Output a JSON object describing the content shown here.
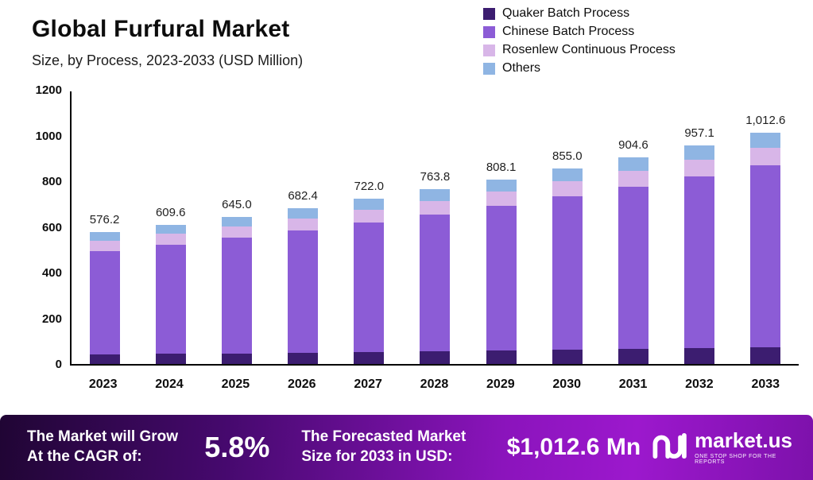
{
  "chart_data": {
    "type": "bar",
    "stacked": true,
    "title": "Global Furfural Market",
    "subtitle": "Size, by Process, 2023-2033 (USD Million)",
    "categories": [
      "2023",
      "2024",
      "2025",
      "2026",
      "2027",
      "2028",
      "2029",
      "2030",
      "2031",
      "2032",
      "2033"
    ],
    "series": [
      {
        "name": "Quaker Batch Process",
        "color": "#3c1d70",
        "values": [
          41.5,
          43.9,
          46.4,
          49.1,
          52.0,
          55.0,
          58.2,
          61.6,
          65.1,
          68.9,
          72.9
        ]
      },
      {
        "name": "Chinese Batch Process",
        "color": "#8c5cd6",
        "values": [
          452.9,
          479.2,
          507.0,
          536.4,
          567.5,
          600.4,
          635.2,
          672.0,
          711.0,
          752.3,
          795.9
        ]
      },
      {
        "name": "Rosenlew Continuous Process",
        "color": "#d8b6e8",
        "values": [
          43.8,
          46.3,
          49.0,
          51.9,
          54.9,
          58.0,
          61.4,
          65.0,
          68.8,
          72.7,
          77.0
        ]
      },
      {
        "name": "Others",
        "color": "#8fb5e3",
        "values": [
          38.0,
          40.2,
          42.6,
          45.0,
          47.6,
          50.4,
          53.3,
          56.4,
          59.7,
          63.2,
          66.8
        ]
      }
    ],
    "totals": [
      576.2,
      609.6,
      645.0,
      682.4,
      722.0,
      763.8,
      808.1,
      855.0,
      904.6,
      957.1,
      1012.6
    ],
    "total_labels": [
      "576.2",
      "609.6",
      "645.0",
      "682.4",
      "722.0",
      "763.8",
      "808.1",
      "855.0",
      "904.6",
      "957.1",
      "1,012.6"
    ],
    "ylim": [
      0,
      1200
    ],
    "yticks": [
      0,
      200,
      400,
      600,
      800,
      1000,
      1200
    ],
    "grid": false,
    "legend_position": "top-right"
  },
  "footer": {
    "cagr_label": "The Market will Grow At the CAGR of:",
    "cagr_value": "5.8%",
    "forecast_label": "The Forecasted Market Size for 2033 in USD:",
    "forecast_value": "$1,012.6 Mn",
    "brand": "market.us",
    "brand_tagline": "ONE STOP SHOP FOR THE REPORTS"
  }
}
